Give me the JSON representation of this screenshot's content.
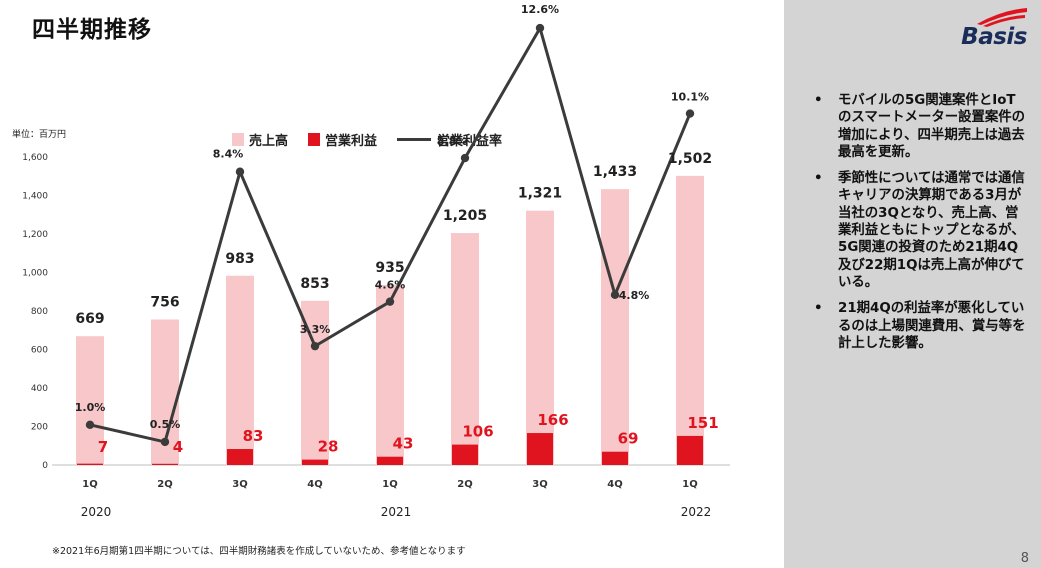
{
  "slide": {
    "title": "四半期推移",
    "unit_label": "単位：百万円",
    "footnote": "※2021年6月期第1四半期については、四半期財務諸表を作成していないため、参考値となります",
    "page_number": "8",
    "logo_text": "Basis"
  },
  "legend": {
    "sales": "売上高",
    "operating_income": "営業利益",
    "operating_margin": "営業利益率"
  },
  "commentary": [
    "モバイルの5G関連案件とIoTのスマートメーター設置案件の増加により、四半期売上は過去最高を更新。",
    "季節性については通常では通信キャリアの決算期である3月が当社の3Qとなり、売上高、営業利益ともにトップとなるが、5G関連の投資のため21期4Q及び22期1Qは売上高が伸びている。",
    "21期4Qの利益率が悪化しているのは上場関連費用、賞与等を計上した影響。"
  ],
  "colors": {
    "sales_bar": "#f7c7c9",
    "op_bar": "#e0141f",
    "margin_line": "#3b3b3b",
    "op_label": "#e0141f",
    "panel_bg": "#d4d4d4"
  },
  "chart_data": {
    "type": "bar",
    "categories": [
      "1Q",
      "2Q",
      "3Q",
      "4Q",
      "1Q",
      "2Q",
      "3Q",
      "4Q",
      "1Q"
    ],
    "year_labels": [
      {
        "label": "2020",
        "index": 0
      },
      {
        "label": "2021",
        "index": 4
      },
      {
        "label": "2022",
        "index": 8
      }
    ],
    "y_ticks": [
      "0",
      "200",
      "400",
      "600",
      "800",
      "1,000",
      "1,200",
      "1,400",
      "1,600"
    ],
    "ylim": [
      0,
      1600
    ],
    "series": [
      {
        "name": "売上高",
        "type": "bar",
        "values": [
          669,
          756,
          983,
          853,
          935,
          1205,
          1321,
          1433,
          1502
        ],
        "labels": [
          "669",
          "756",
          "983",
          "853",
          "935",
          "1,205",
          "1,321",
          "1,433",
          "1,502"
        ]
      },
      {
        "name": "営業利益",
        "type": "bar",
        "values": [
          7,
          4,
          83,
          28,
          43,
          106,
          166,
          69,
          151
        ],
        "labels": [
          "7",
          "4",
          "83",
          "28",
          "43",
          "106",
          "166",
          "69",
          "151"
        ]
      },
      {
        "name": "営業利益率",
        "type": "line",
        "values": [
          1.0,
          0.5,
          8.4,
          3.3,
          4.6,
          8.8,
          12.6,
          4.8,
          10.1
        ],
        "labels": [
          "1.0%",
          "0.5%",
          "8.4%",
          "3.3%",
          "4.6%",
          "8.8%",
          "12.6%",
          "4.8%",
          "10.1%"
        ]
      }
    ],
    "legend_position": "top"
  }
}
